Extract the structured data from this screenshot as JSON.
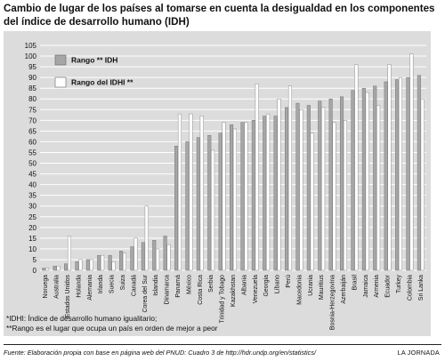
{
  "title_line1": "Cambio de lugar de los países al tomarse en cuenta la desigualdad en los componentes",
  "title_line2": "del  índice de desarrollo humano (IDH)",
  "notes": [
    "*IDHI: Índice de desarrollo humano igualitario;",
    "**Rango es el lugar que ocupa un país en orden de mejor a peor"
  ],
  "source": "Fuente: Elaboración propia con base en página web del PNUD: Cuadro 3 de http://hdr.undp.org/en/statistics/",
  "brand": "LA JORNADA",
  "chart_data": {
    "type": "bar",
    "title": "Cambio de lugar de los países al tomarse en cuenta la desigualdad en los componentes del  índice de desarrollo humano (IDH)",
    "xlabel": "",
    "ylabel": "",
    "ylim": [
      0,
      105
    ],
    "yticks": [
      0,
      5,
      10,
      15,
      20,
      25,
      30,
      35,
      40,
      45,
      50,
      55,
      60,
      65,
      70,
      75,
      80,
      85,
      90,
      95,
      100,
      105
    ],
    "grid": true,
    "legend_position": "top-left",
    "categories": [
      "Noruega",
      "Australia",
      "Estados Unidos",
      "Holanda",
      "Alemania",
      "Irlanda",
      "Suecia",
      "Suiza",
      "Canadá",
      "Corea del Sur",
      "Islandia",
      "Dinamarca",
      "Panamá",
      "México",
      "Costa Rica",
      "Serbia",
      "Trinidad y Tobago",
      "Kazakhstan",
      "Albania",
      "Venezuela",
      "Georgia",
      "Líbano",
      "Perú",
      "Macedonia",
      "Ucrania",
      "Mauritius",
      "Bosnia-Herzegovina",
      "Azerbaiján",
      "Brasil",
      "Jamaica",
      "Armenia",
      "Ecuador",
      "Turkey",
      "Colombia",
      "Sri Lanka"
    ],
    "series": [
      {
        "name": "Rango ** IDH",
        "color": "#a6a6a6",
        "values": [
          1,
          2,
          3,
          4,
          5,
          7,
          7,
          9,
          11,
          13,
          14,
          16,
          58,
          60,
          62,
          63,
          64,
          68,
          69,
          70,
          72,
          72,
          76,
          78,
          77,
          79,
          80,
          81,
          84,
          85,
          86,
          88,
          89,
          90,
          91
        ]
      },
      {
        "name": "Rango del IDHI **",
        "color": "#ffffff",
        "values": [
          1,
          2,
          16,
          5,
          5,
          7,
          4,
          8,
          15,
          30,
          10,
          12,
          73,
          73,
          72,
          56,
          69,
          66,
          69,
          87,
          73,
          80,
          86,
          75,
          64,
          76,
          69,
          70,
          96,
          83,
          77,
          96,
          90,
          101,
          80
        ]
      }
    ]
  },
  "colors": {
    "panel": "#dcdcdc",
    "grid": "#ffffff",
    "idh_bar": "#a6a6a6",
    "idhi_bar": "#ffffff"
  }
}
